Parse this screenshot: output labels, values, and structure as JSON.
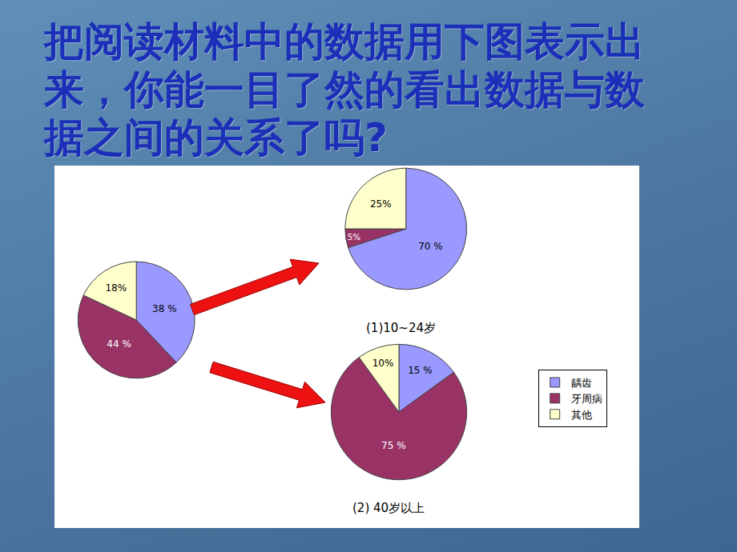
{
  "heading": "把阅读材料中的数据用下图表示出来，你能一目了然的看出数据与数据之间的关系了吗?",
  "chart_data": [
    {
      "type": "pie",
      "categories": [
        "龋齿",
        "牙周病",
        "其他"
      ],
      "values": [
        38,
        44,
        18
      ],
      "value_labels": [
        "38 %",
        "44 %",
        "18%"
      ],
      "colors": [
        "#9999ff",
        "#993366",
        "#ffffcc"
      ],
      "data_labels": true
    },
    {
      "type": "pie",
      "title": "(1)10~24岁",
      "categories": [
        "龋齿",
        "牙周病",
        "其他"
      ],
      "values": [
        70,
        5,
        25
      ],
      "value_labels": [
        "70 %",
        "5%",
        "25%"
      ],
      "colors": [
        "#9999ff",
        "#993366",
        "#ffffcc"
      ],
      "data_labels": true
    },
    {
      "type": "pie",
      "title": "(2) 40岁以上",
      "categories": [
        "龋齿",
        "牙周病",
        "其他"
      ],
      "values": [
        15,
        75,
        10
      ],
      "value_labels": [
        "15 %",
        "75 %",
        "10%"
      ],
      "colors": [
        "#9999ff",
        "#993366",
        "#ffffcc"
      ],
      "data_labels": true,
      "legend": "right"
    }
  ]
}
